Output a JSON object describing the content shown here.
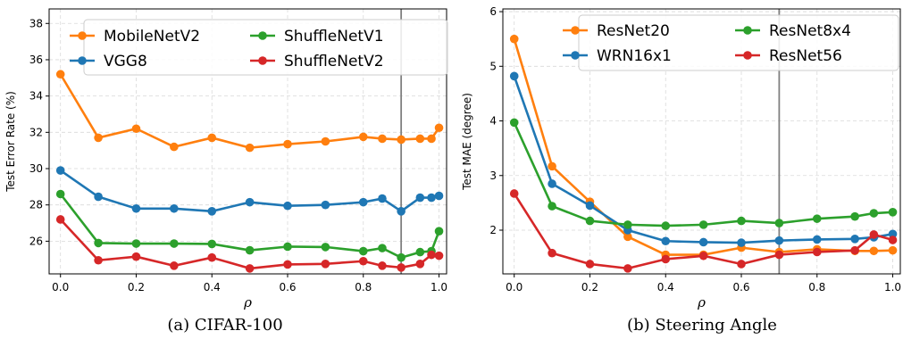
{
  "chart_data": [
    {
      "type": "line",
      "caption": "(a) CIFAR-100",
      "xlabel": "ρ",
      "ylabel": "Test Error Rate (%)",
      "xlim": [
        -0.03,
        1.02
      ],
      "ylim": [
        24.2,
        38.8
      ],
      "xticks": [
        "0.0",
        "0.2",
        "0.4",
        "0.6",
        "0.8",
        "1.0"
      ],
      "yticks": [
        "26",
        "28",
        "30",
        "32",
        "34",
        "36",
        "38"
      ],
      "vline_x": 0.9,
      "grid": true,
      "legend_position": "top",
      "x": [
        0.0,
        0.1,
        0.2,
        0.3,
        0.4,
        0.5,
        0.6,
        0.7,
        0.8,
        0.85,
        0.9,
        0.95,
        0.98,
        1.0
      ],
      "series": [
        {
          "name": "MobileNetV2",
          "color": "#ff7f0e",
          "values": [
            35.2,
            31.7,
            32.2,
            31.2,
            31.7,
            31.15,
            31.35,
            31.5,
            31.75,
            31.65,
            31.6,
            31.65,
            31.65,
            32.25
          ]
        },
        {
          "name": "VGG8",
          "color": "#1f77b4",
          "values": [
            29.9,
            28.45,
            27.8,
            27.8,
            27.65,
            28.15,
            27.95,
            28.0,
            28.15,
            28.35,
            27.65,
            28.4,
            28.4,
            28.5
          ]
        },
        {
          "name": "ShuffleNetV1",
          "color": "#2ca02c",
          "values": [
            28.6,
            25.9,
            25.87,
            25.87,
            25.85,
            25.5,
            25.7,
            25.68,
            25.45,
            25.62,
            25.1,
            25.4,
            25.45,
            26.55
          ]
        },
        {
          "name": "ShuffleNetV2",
          "color": "#d62728",
          "values": [
            27.2,
            24.95,
            25.15,
            24.65,
            25.1,
            24.5,
            24.72,
            24.75,
            24.9,
            24.65,
            24.55,
            24.75,
            25.25,
            25.2
          ]
        }
      ]
    },
    {
      "type": "line",
      "caption": "(b) Steering Angle",
      "xlabel": "ρ",
      "ylabel": "Test MAE (degree)",
      "xlim": [
        -0.03,
        1.02
      ],
      "ylim": [
        1.2,
        6.05
      ],
      "xticks": [
        "0.0",
        "0.2",
        "0.4",
        "0.6",
        "0.8",
        "1.0"
      ],
      "yticks": [
        "2",
        "3",
        "4",
        "5",
        "6"
      ],
      "vline_x": 0.7,
      "grid": true,
      "legend_position": "top",
      "x": [
        0.0,
        0.1,
        0.2,
        0.3,
        0.4,
        0.5,
        0.6,
        0.7,
        0.8,
        0.9,
        0.95,
        1.0
      ],
      "series": [
        {
          "name": "ResNet20",
          "color": "#ff7f0e",
          "values": [
            5.5,
            3.17,
            2.52,
            1.88,
            1.55,
            1.55,
            1.68,
            1.6,
            1.65,
            1.62,
            1.62,
            1.63
          ]
        },
        {
          "name": "WRN16x1",
          "color": "#1f77b4",
          "values": [
            4.82,
            2.85,
            2.45,
            2.0,
            1.8,
            1.78,
            1.77,
            1.81,
            1.83,
            1.84,
            1.87,
            1.93
          ]
        },
        {
          "name": "ResNet8x4",
          "color": "#2ca02c",
          "values": [
            3.97,
            2.44,
            2.17,
            2.1,
            2.08,
            2.1,
            2.17,
            2.13,
            2.21,
            2.25,
            2.31,
            2.33
          ]
        },
        {
          "name": "ResNet56",
          "color": "#d62728",
          "values": [
            2.67,
            1.58,
            1.38,
            1.3,
            1.47,
            1.53,
            1.38,
            1.55,
            1.6,
            1.63,
            1.92,
            1.82
          ]
        }
      ]
    }
  ]
}
